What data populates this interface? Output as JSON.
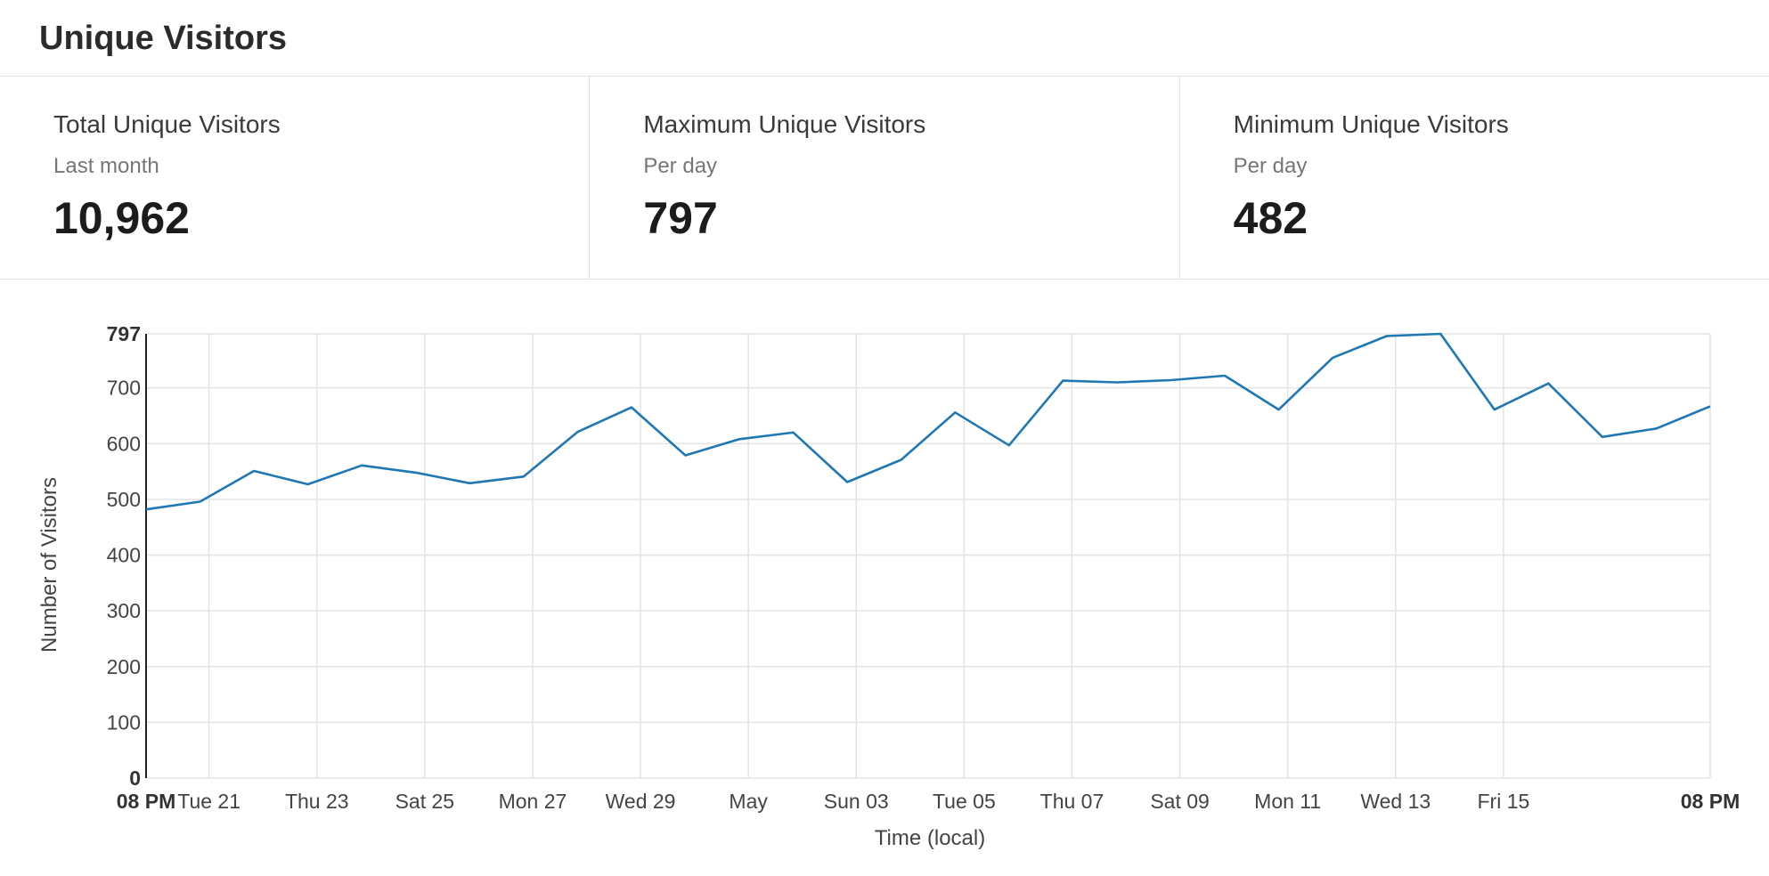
{
  "header": {
    "title": "Unique Visitors"
  },
  "stats": [
    {
      "label": "Total Unique Visitors",
      "sub": "Last month",
      "value": "10,962"
    },
    {
      "label": "Maximum Unique Visitors",
      "sub": "Per day",
      "value": "797"
    },
    {
      "label": "Minimum Unique Visitors",
      "sub": "Per day",
      "value": "482"
    }
  ],
  "colors": {
    "line": "#1f77b4",
    "grid": "#e3e3e3",
    "axis": "#222222",
    "tick_text": "#444444"
  },
  "chart_data": {
    "type": "line",
    "xlabel": "Time (local)",
    "ylabel": "Number of Visitors",
    "ylim": [
      0,
      797
    ],
    "yticks": [
      0,
      100,
      200,
      300,
      400,
      500,
      600,
      700,
      797
    ],
    "grid": true,
    "x_domain": [
      "2018-04-19T20:00",
      "2018-05-18T20:00"
    ],
    "x_ticks": [
      {
        "x": "2018-04-19T20:00",
        "label": "08 PM",
        "bold": true
      },
      {
        "x": "2018-04-21T00:00",
        "label": "Tue 21"
      },
      {
        "x": "2018-04-23T00:00",
        "label": "Thu 23"
      },
      {
        "x": "2018-04-25T00:00",
        "label": "Sat 25"
      },
      {
        "x": "2018-04-27T00:00",
        "label": "Mon 27"
      },
      {
        "x": "2018-04-29T00:00",
        "label": "Wed 29"
      },
      {
        "x": "2018-05-01T00:00",
        "label": "May"
      },
      {
        "x": "2018-05-03T00:00",
        "label": "Sun 03"
      },
      {
        "x": "2018-05-05T00:00",
        "label": "Tue 05"
      },
      {
        "x": "2018-05-07T00:00",
        "label": "Thu 07"
      },
      {
        "x": "2018-05-09T00:00",
        "label": "Sat 09"
      },
      {
        "x": "2018-05-11T00:00",
        "label": "Mon 11"
      },
      {
        "x": "2018-05-13T00:00",
        "label": "Wed 13"
      },
      {
        "x": "2018-05-15T00:00",
        "label": "Fri 15"
      },
      {
        "x": "2018-05-18T20:00",
        "label": "08 PM",
        "bold": true
      }
    ],
    "series": [
      {
        "x": [
          "2018-04-19T20:00",
          "2018-04-20T20:00",
          "2018-04-21T20:00",
          "2018-04-22T20:00",
          "2018-04-23T20:00",
          "2018-04-24T20:00",
          "2018-04-25T20:00",
          "2018-04-26T20:00",
          "2018-04-27T20:00",
          "2018-04-28T20:00",
          "2018-04-29T20:00",
          "2018-04-30T20:00",
          "2018-05-01T20:00",
          "2018-05-02T20:00",
          "2018-05-03T20:00",
          "2018-05-04T20:00",
          "2018-05-05T20:00",
          "2018-05-06T20:00",
          "2018-05-07T20:00",
          "2018-05-08T20:00",
          "2018-05-09T20:00",
          "2018-05-10T20:00",
          "2018-05-11T20:00",
          "2018-05-12T20:00",
          "2018-05-13T20:00",
          "2018-05-14T20:00",
          "2018-05-15T20:00",
          "2018-05-16T20:00",
          "2018-05-17T20:00",
          "2018-05-18T20:00"
        ],
        "values": [
          482,
          496,
          551,
          527,
          561,
          548,
          529,
          541,
          621,
          665,
          579,
          608,
          620,
          531,
          571,
          656,
          597,
          713,
          710,
          714,
          722,
          661,
          754,
          793,
          797,
          661,
          708,
          612,
          627,
          667
        ]
      }
    ]
  }
}
